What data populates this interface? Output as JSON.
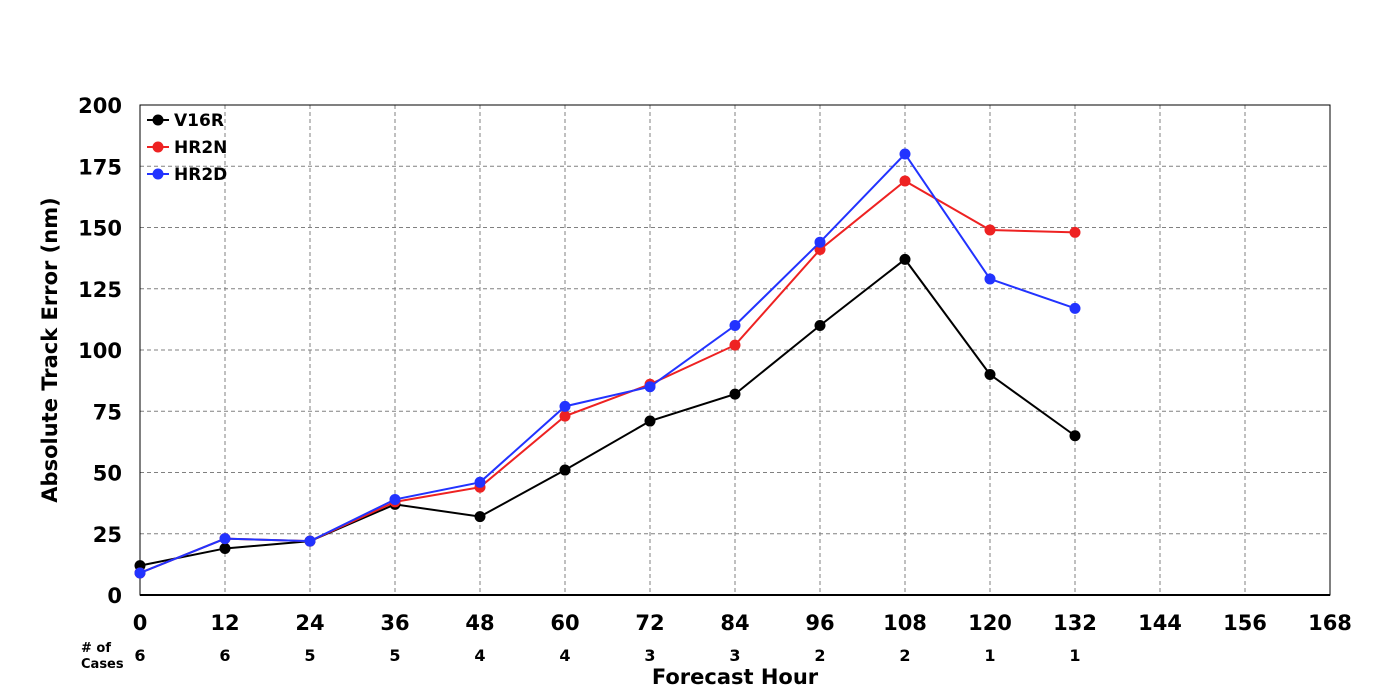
{
  "chart_data": {
    "type": "line",
    "xlabel": "Forecast Hour",
    "ylabel": "Absolute Track Error (nm)",
    "xlim": [
      0,
      168
    ],
    "ylim": [
      0,
      200
    ],
    "xticks": [
      "0",
      "12",
      "24",
      "36",
      "48",
      "60",
      "72",
      "84",
      "96",
      "108",
      "120",
      "132",
      "144",
      "156",
      "168"
    ],
    "yticks": [
      "0",
      "25",
      "50",
      "75",
      "100",
      "125",
      "150",
      "175",
      "200"
    ],
    "grid": true,
    "legend_position": "top-left",
    "x": [
      0,
      12,
      24,
      36,
      48,
      60,
      72,
      84,
      96,
      108,
      120,
      132
    ],
    "series": [
      {
        "name": "V16R",
        "color": "#000000",
        "values": [
          12,
          19,
          22,
          37,
          32,
          51,
          71,
          82,
          110,
          137,
          90,
          65
        ]
      },
      {
        "name": "HR2N",
        "color": "#ee2222",
        "values": [
          9,
          23,
          22,
          38,
          44,
          73,
          86,
          102,
          141,
          169,
          149,
          148
        ]
      },
      {
        "name": "HR2D",
        "color": "#2233ff",
        "values": [
          9,
          23,
          22,
          39,
          46,
          77,
          85,
          110,
          144,
          180,
          129,
          117
        ]
      }
    ],
    "cases_label": [
      "# of",
      "Cases"
    ],
    "cases": [
      "6",
      "6",
      "5",
      "5",
      "4",
      "4",
      "3",
      "3",
      "2",
      "2",
      "1",
      "1"
    ]
  }
}
